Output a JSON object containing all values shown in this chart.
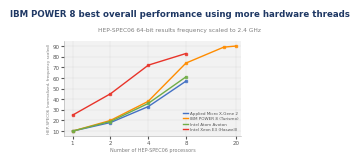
{
  "title": "IBM POWER 8 best overall performance using more hardware threads",
  "subtitle": "HEP-SPEC06 64-bit results frequency scaled to 2.4 GHz",
  "xlabel": "Number of HEP-SPEC06 processors",
  "ylabel": "HEP-SPEC06 (normalized, frequency scaled)",
  "series": [
    {
      "label": "Applied Micro X-Gene 2",
      "color": "#4472C4",
      "x": [
        1,
        2,
        4,
        8
      ],
      "y": [
        10,
        18,
        33,
        57
      ]
    },
    {
      "label": "IBM POWER 8 (Turismo)",
      "color": "#FF8C00",
      "x": [
        1,
        2,
        4,
        8,
        16,
        20
      ],
      "y": [
        10,
        20,
        38,
        74,
        89,
        90
      ]
    },
    {
      "label": "Intel Atom Avoton",
      "color": "#70AD47",
      "x": [
        1,
        2,
        4,
        8
      ],
      "y": [
        10,
        19,
        36,
        61
      ]
    },
    {
      "label": "Intel Xeon E3 (Haswell)",
      "color": "#E8342A",
      "x": [
        1,
        2,
        4,
        8
      ],
      "y": [
        25,
        45,
        72,
        83
      ]
    }
  ],
  "xlim": [
    0.85,
    22
  ],
  "ylim": [
    5,
    95
  ],
  "xticks": [
    1,
    2,
    4,
    8,
    20
  ],
  "yticks": [
    10,
    20,
    30,
    40,
    50,
    60,
    70,
    80,
    90
  ],
  "title_color": "#1F3864",
  "subtitle_color": "#7F7F7F",
  "bg_color": "#FFFFFF",
  "plot_bg_color": "#F2F2F2"
}
